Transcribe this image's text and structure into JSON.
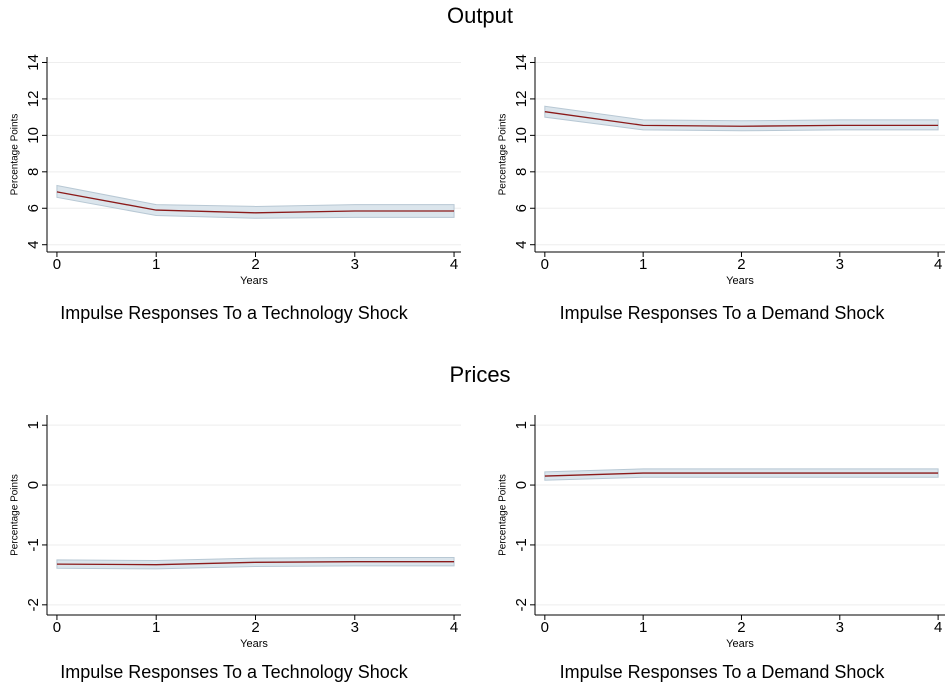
{
  "sections": [
    {
      "title": "Output"
    },
    {
      "title": "Prices"
    }
  ],
  "chart_data": [
    {
      "type": "line",
      "caption": "Impulse Responses To a Technology Shock",
      "ylabel": "Percentage Points",
      "xlabel": "Years",
      "x": [
        0,
        1,
        2,
        3,
        4
      ],
      "xlim": [
        -0.1,
        4.07
      ],
      "xticks": [
        0,
        1,
        2,
        3,
        4
      ],
      "ylim": [
        3.6,
        14.3
      ],
      "yticks": [
        4,
        6,
        8,
        10,
        12,
        14
      ],
      "grid": true,
      "series": [
        {
          "color": "#8b1a1a",
          "values": [
            6.9,
            5.9,
            5.75,
            5.85,
            5.85
          ]
        }
      ],
      "band": {
        "color": "#dbe5ec",
        "lower": [
          6.6,
          5.6,
          5.45,
          5.5,
          5.5
        ],
        "upper": [
          7.25,
          6.2,
          6.1,
          6.2,
          6.2
        ]
      }
    },
    {
      "type": "line",
      "caption": "Impulse Responses To a Demand Shock",
      "ylabel": "Percentage Points",
      "xlabel": "Years",
      "x": [
        0,
        1,
        2,
        3,
        4
      ],
      "xlim": [
        -0.1,
        4.07
      ],
      "xticks": [
        0,
        1,
        2,
        3,
        4
      ],
      "ylim": [
        3.6,
        14.3
      ],
      "yticks": [
        4,
        6,
        8,
        10,
        12,
        14
      ],
      "grid": true,
      "series": [
        {
          "color": "#8b1a1a",
          "values": [
            11.3,
            10.55,
            10.5,
            10.55,
            10.55
          ]
        }
      ],
      "band": {
        "color": "#dbe5ec",
        "lower": [
          11.0,
          10.3,
          10.25,
          10.3,
          10.3
        ],
        "upper": [
          11.6,
          10.85,
          10.8,
          10.85,
          10.85
        ]
      }
    },
    {
      "type": "line",
      "caption": "Impulse Responses To a Technology Shock",
      "ylabel": "Percentage Points",
      "xlabel": "Years",
      "x": [
        0,
        1,
        2,
        3,
        4
      ],
      "xlim": [
        -0.1,
        4.07
      ],
      "xticks": [
        0,
        1,
        2,
        3,
        4
      ],
      "ylim": [
        -2.17,
        1.17
      ],
      "yticks": [
        -2,
        -1,
        0,
        1
      ],
      "grid": true,
      "series": [
        {
          "color": "#8b1a1a",
          "values": [
            -1.32,
            -1.33,
            -1.29,
            -1.28,
            -1.28
          ]
        }
      ],
      "band": {
        "color": "#dbe5ec",
        "lower": [
          -1.39,
          -1.4,
          -1.36,
          -1.35,
          -1.35
        ],
        "upper": [
          -1.25,
          -1.26,
          -1.22,
          -1.21,
          -1.21
        ]
      }
    },
    {
      "type": "line",
      "caption": "Impulse Responses To a Demand Shock",
      "ylabel": "Percentage Points",
      "xlabel": "Years",
      "x": [
        0,
        1,
        2,
        3,
        4
      ],
      "xlim": [
        -0.1,
        4.07
      ],
      "xticks": [
        0,
        1,
        2,
        3,
        4
      ],
      "ylim": [
        -2.17,
        1.17
      ],
      "yticks": [
        -2,
        -1,
        0,
        1
      ],
      "grid": true,
      "series": [
        {
          "color": "#8b1a1a",
          "values": [
            0.15,
            0.2,
            0.2,
            0.2,
            0.2
          ]
        }
      ],
      "band": {
        "color": "#dbe5ec",
        "lower": [
          0.08,
          0.13,
          0.13,
          0.13,
          0.13
        ],
        "upper": [
          0.22,
          0.27,
          0.27,
          0.27,
          0.27
        ]
      }
    }
  ]
}
